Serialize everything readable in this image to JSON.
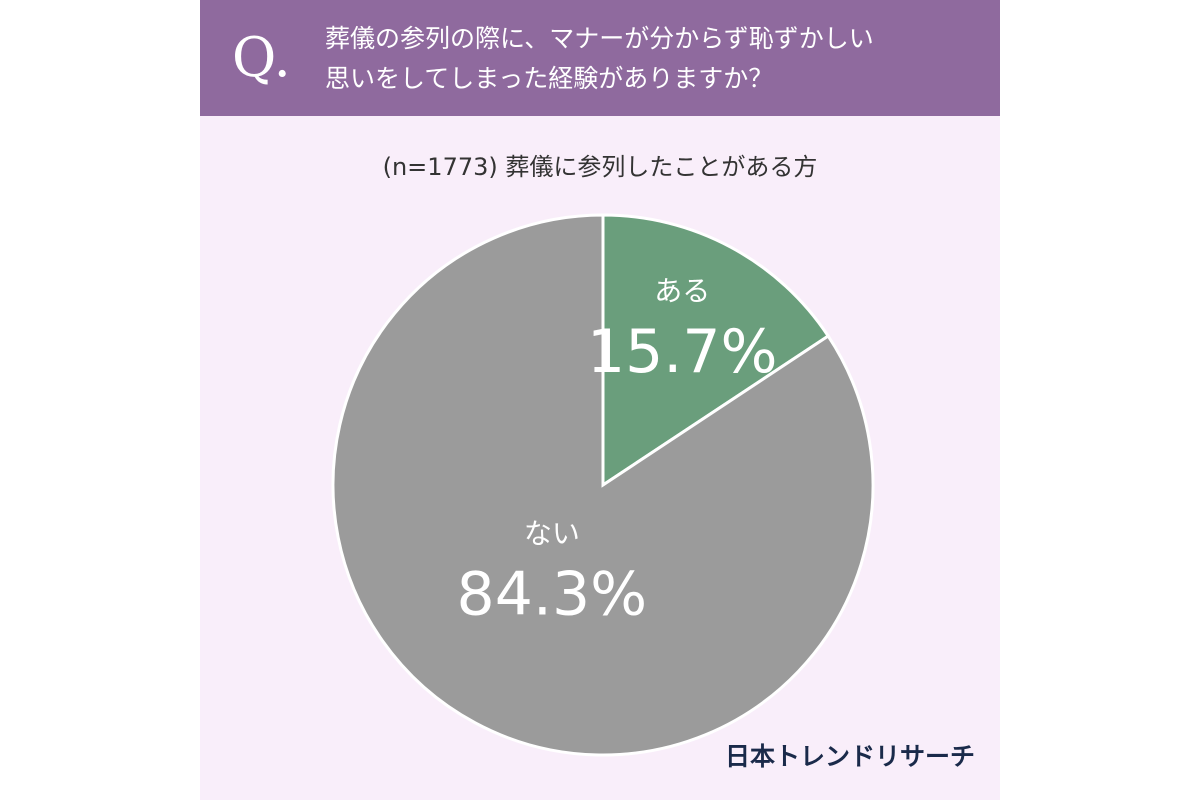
{
  "chart_data": {
    "type": "pie",
    "question_label": "Q.",
    "title_lines": [
      "葬儀の参列の際に、マナーが分からず恥ずかしい",
      "思いをしてしまった経験がありますか？"
    ],
    "subtitle": "(n=1773) 葬儀に参列したことがある方",
    "categories": [
      "ある",
      "ない"
    ],
    "values": [
      15.7,
      84.3
    ],
    "value_labels": [
      "15.7%",
      "84.3%"
    ],
    "colors": [
      "#6a9e7c",
      "#9b9b9b"
    ],
    "source": "日本トレンドリサーチ"
  }
}
